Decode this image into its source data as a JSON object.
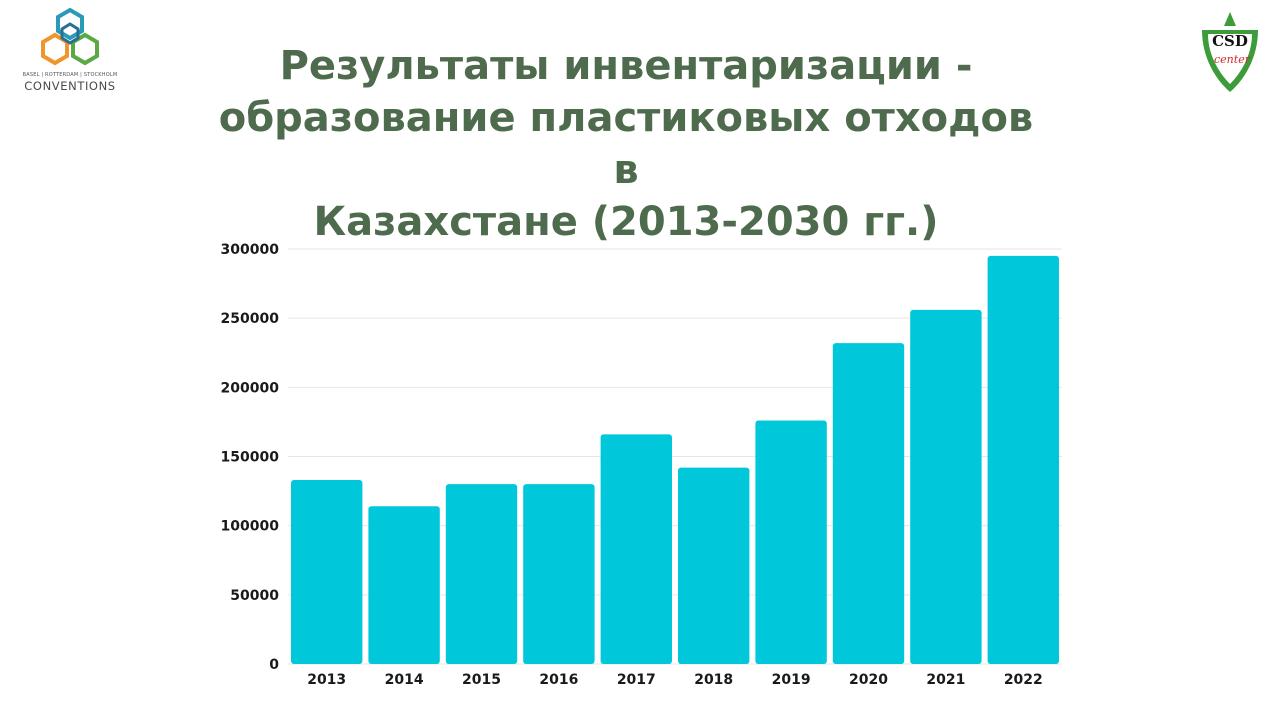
{
  "title_lines": [
    "Результаты инвентаризации -",
    "образование пластиковых отходов в",
    "Казахстане (2013-2030 гг.)"
  ],
  "logos": {
    "left": {
      "cities": "BASEL | ROTTERDAM | STOCKHOLM",
      "name": "CONVENTIONS"
    },
    "right": {
      "mark": "CSD",
      "sub": "center"
    }
  },
  "colors": {
    "bar": "#00c8da",
    "title": "#4e6b4d",
    "grid": "#e6e6e6"
  },
  "chart_data": {
    "type": "bar",
    "title": "",
    "xlabel": "",
    "ylabel": "",
    "categories": [
      "2013",
      "2014",
      "2015",
      "2016",
      "2017",
      "2018",
      "2019",
      "2020",
      "2021",
      "2022"
    ],
    "values": [
      133000,
      114000,
      130000,
      130000,
      166000,
      142000,
      176000,
      232000,
      256000,
      295000
    ],
    "ylim": [
      0,
      300000
    ],
    "yticks": [
      0,
      50000,
      100000,
      150000,
      200000,
      250000,
      300000
    ],
    "ytick_labels": [
      "0",
      "50000",
      "100000",
      "150000",
      "200000",
      "250000",
      "300000"
    ],
    "grid": true,
    "legend": "none"
  }
}
